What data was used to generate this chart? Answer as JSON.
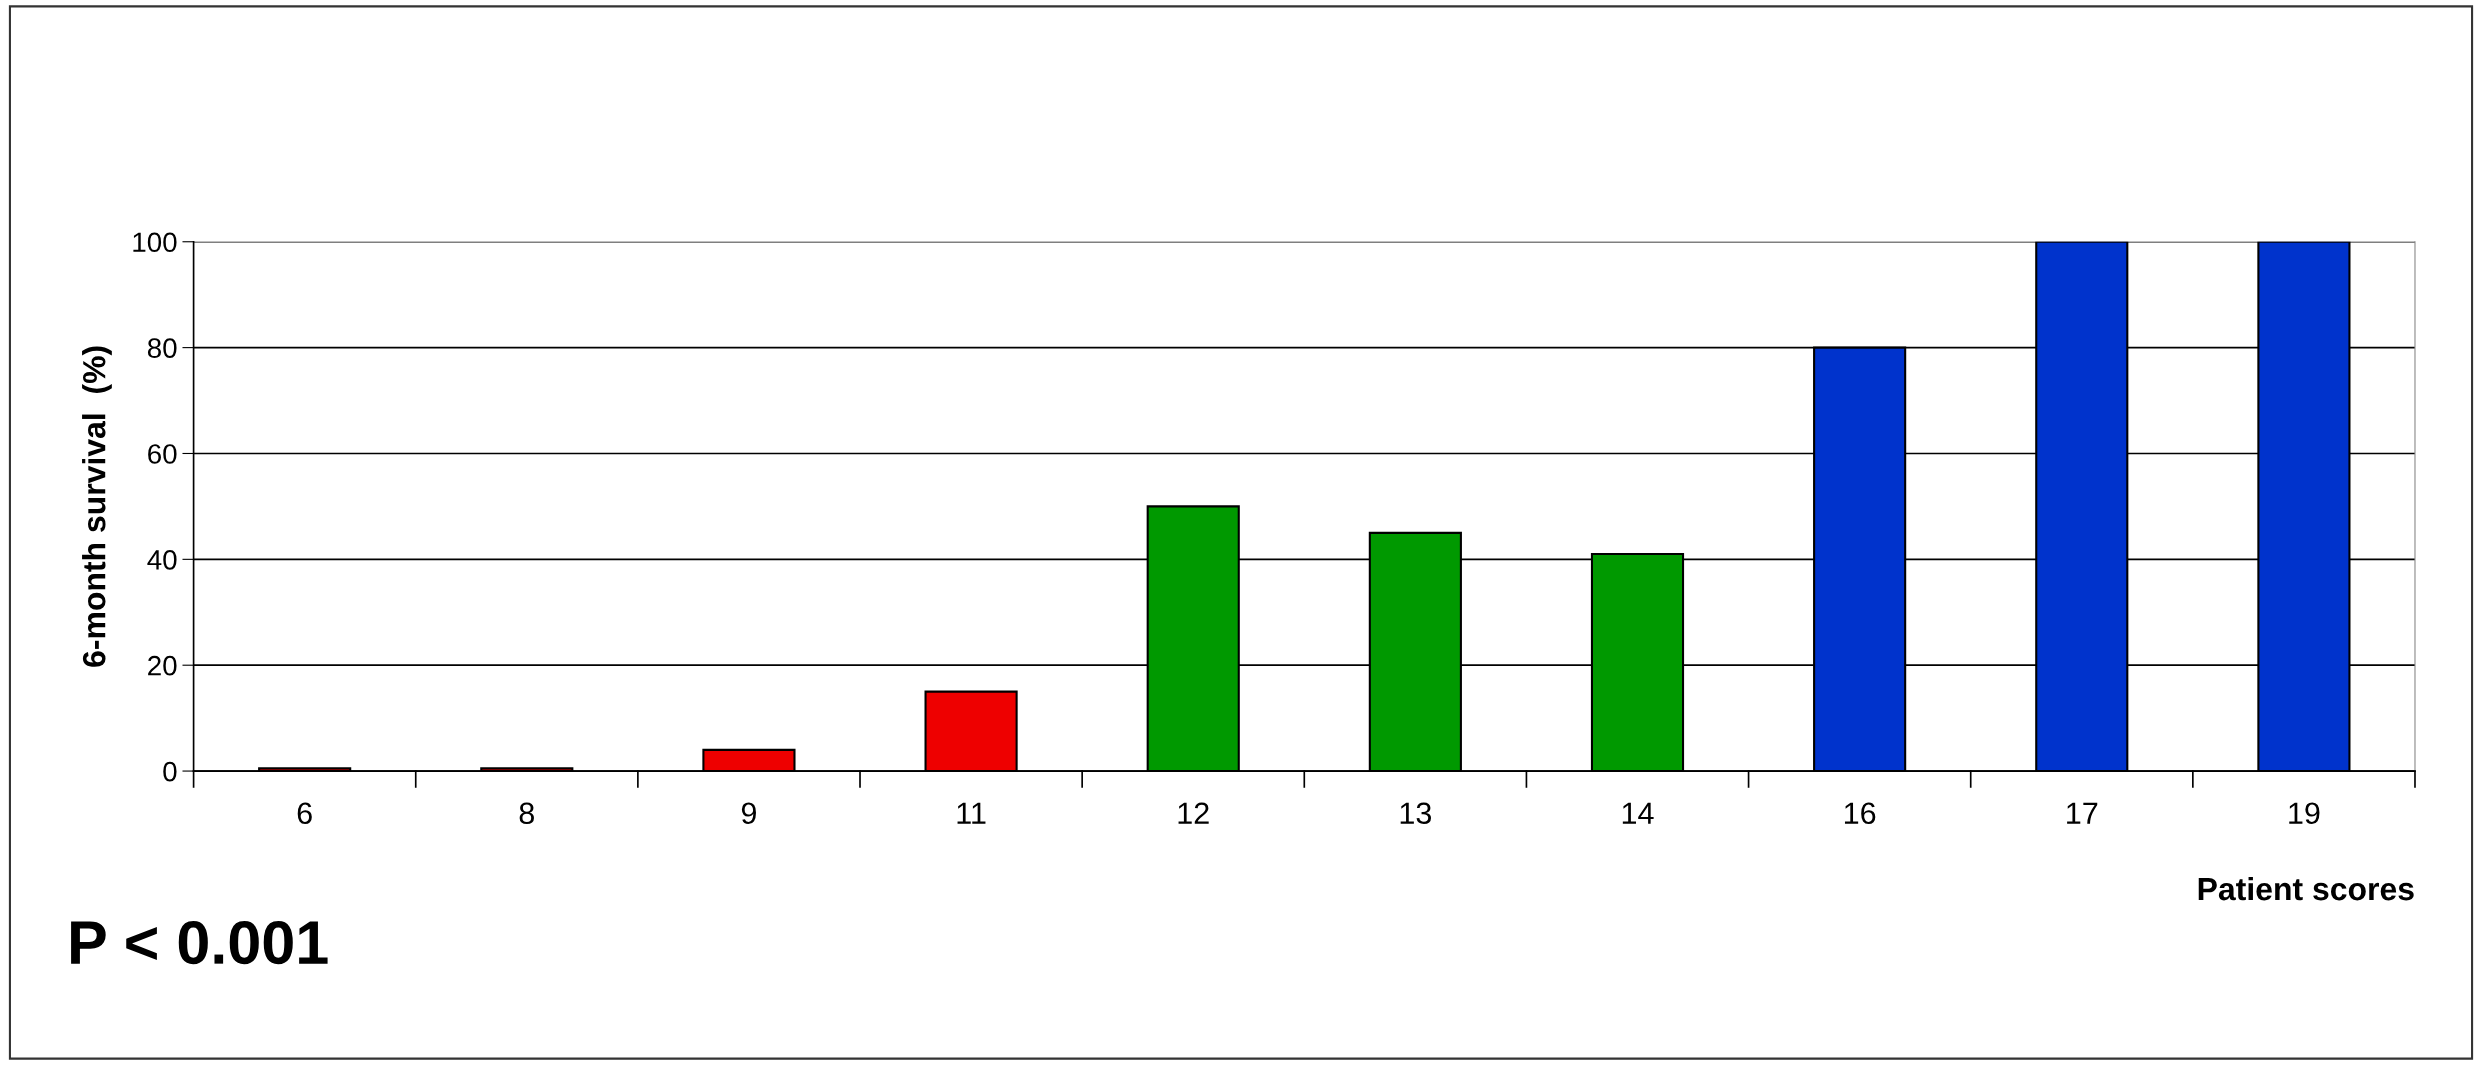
{
  "chart_data": {
    "type": "bar",
    "xlabel": "Patient scores",
    "ylabel": "6-month survival  (%)",
    "categories": [
      "6",
      "8",
      "9",
      "11",
      "12",
      "13",
      "14",
      "16",
      "17",
      "19"
    ],
    "values": [
      0.5,
      0.5,
      4,
      15,
      50,
      45,
      41,
      80,
      100,
      100
    ],
    "colors": [
      "#ee0000",
      "#ee0000",
      "#ee0000",
      "#ee0000",
      "#009900",
      "#009900",
      "#009900",
      "#0033cc",
      "#0033cc",
      "#0033cc"
    ],
    "ylim": [
      0,
      100
    ],
    "yticks": [
      0,
      20,
      40,
      60,
      80,
      100
    ],
    "grid": "y",
    "annotations": [
      "P < 0.001"
    ]
  }
}
